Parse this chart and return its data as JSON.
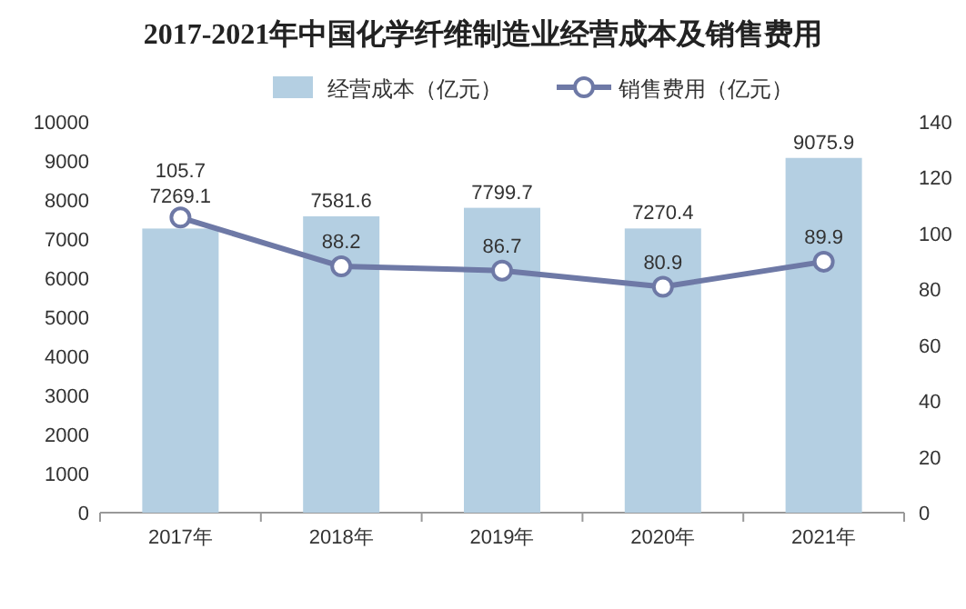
{
  "chart_data": {
    "type": "bar",
    "title": "2017-2021年中国化学纤维制造业经营成本及销售费用",
    "categories": [
      "2017年",
      "2018年",
      "2019年",
      "2020年",
      "2021年"
    ],
    "series": [
      {
        "name": "经营成本（亿元）",
        "color": "#b4cfe2",
        "values": [
          7269.1,
          7581.6,
          7799.7,
          7270.4,
          9075.9
        ]
      },
      {
        "name": "销售费用（亿元）",
        "type": "line",
        "axis": "y2",
        "color": "#6e79a6",
        "values": [
          105.7,
          88.2,
          86.7,
          80.9,
          89.9
        ]
      }
    ],
    "ylim": [
      0,
      10000
    ],
    "yticks": [
      0,
      1000,
      2000,
      3000,
      4000,
      5000,
      6000,
      7000,
      8000,
      9000,
      10000
    ],
    "y2lim": [
      0,
      140
    ],
    "y2ticks": [
      0,
      20,
      40,
      60,
      80,
      100,
      120,
      140
    ],
    "legend": "top",
    "marker": "circle",
    "line_style": "solid",
    "data_labels": true,
    "grid": false
  }
}
